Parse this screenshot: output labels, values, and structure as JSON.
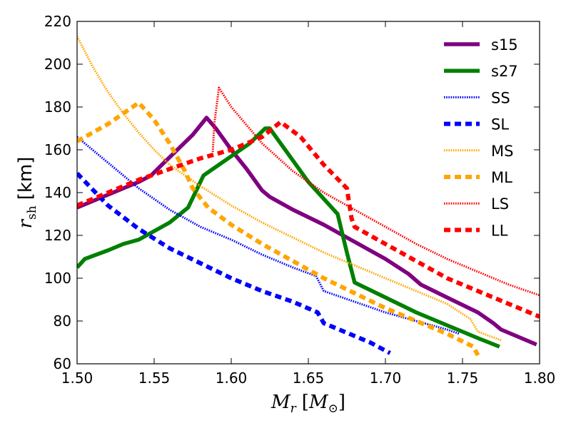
{
  "chart_data": {
    "type": "line",
    "title": "",
    "xlabel_parts": {
      "var": "M",
      "sub": "r",
      "open": "[",
      "unit": "M",
      "unit_sub": "⊙",
      "close": "]"
    },
    "ylabel_parts": {
      "var": "r",
      "sub": "sh",
      "unit": "[km]"
    },
    "xlim": [
      1.5,
      1.8
    ],
    "ylim": [
      60,
      220
    ],
    "xticks": [
      1.5,
      1.55,
      1.6,
      1.65,
      1.7,
      1.75,
      1.8
    ],
    "xtick_labels": [
      "1.50",
      "1.55",
      "1.60",
      "1.65",
      "1.70",
      "1.75",
      "1.80"
    ],
    "yticks": [
      60,
      80,
      100,
      120,
      140,
      160,
      180,
      200,
      220
    ],
    "ytick_labels": [
      "60",
      "80",
      "100",
      "120",
      "140",
      "160",
      "180",
      "200",
      "220"
    ],
    "grid": false,
    "legend_position": "top-right",
    "series": [
      {
        "name": "s15",
        "color": "#800080",
        "style": "solid",
        "x": [
          1.5,
          1.51,
          1.52,
          1.53,
          1.54,
          1.548,
          1.555,
          1.565,
          1.575,
          1.584,
          1.59,
          1.6,
          1.61,
          1.62,
          1.625,
          1.64,
          1.66,
          1.68,
          1.7,
          1.715,
          1.723,
          1.74,
          1.76,
          1.77,
          1.775,
          1.798
        ],
        "y": [
          133,
          136,
          139,
          142,
          145,
          148,
          153,
          160,
          167,
          175,
          170,
          160,
          151,
          141,
          138,
          132,
          125,
          117,
          109,
          102,
          97,
          91,
          84,
          79,
          76,
          69
        ]
      },
      {
        "name": "s27",
        "color": "#008000",
        "style": "solid",
        "x": [
          1.5,
          1.505,
          1.52,
          1.53,
          1.54,
          1.55,
          1.56,
          1.572,
          1.578,
          1.582,
          1.59,
          1.6,
          1.612,
          1.622,
          1.625,
          1.635,
          1.65,
          1.669,
          1.675,
          1.68,
          1.7,
          1.72,
          1.74,
          1.76,
          1.774
        ],
        "y": [
          105,
          109,
          113,
          116,
          118,
          122,
          126,
          133,
          142,
          148,
          152,
          157,
          163,
          170,
          170,
          160,
          145,
          130,
          112,
          98,
          91,
          84,
          78,
          72,
          68
        ]
      },
      {
        "name": "SS",
        "color": "#0000ff",
        "style": "dotted",
        "x": [
          1.5,
          1.52,
          1.54,
          1.56,
          1.58,
          1.6,
          1.62,
          1.64,
          1.655,
          1.66,
          1.68,
          1.7,
          1.72,
          1.74,
          1.748
        ],
        "y": [
          166,
          154,
          142,
          132,
          124,
          118,
          111,
          105,
          101,
          94,
          89,
          84,
          80,
          76,
          74
        ]
      },
      {
        "name": "SL",
        "color": "#0000ff",
        "style": "dashed",
        "x": [
          1.5,
          1.52,
          1.54,
          1.56,
          1.58,
          1.6,
          1.62,
          1.64,
          1.656,
          1.66,
          1.68,
          1.69,
          1.703
        ],
        "y": [
          149,
          134,
          123,
          114,
          107,
          100,
          94,
          89,
          84,
          79,
          73,
          70,
          65
        ]
      },
      {
        "name": "MS",
        "color": "#ffa500",
        "style": "dotted",
        "x": [
          1.5,
          1.51,
          1.52,
          1.53,
          1.54,
          1.55,
          1.56,
          1.58,
          1.6,
          1.62,
          1.64,
          1.66,
          1.68,
          1.7,
          1.72,
          1.74,
          1.755,
          1.76,
          1.775
        ],
        "y": [
          213,
          199,
          187,
          177,
          168,
          160,
          153,
          143,
          134,
          126,
          119,
          112,
          106,
          100,
          94,
          88,
          81,
          75,
          71
        ]
      },
      {
        "name": "ML",
        "color": "#ffa500",
        "style": "dashed",
        "x": [
          1.5,
          1.52,
          1.54,
          1.55,
          1.56,
          1.57,
          1.575,
          1.585,
          1.6,
          1.62,
          1.64,
          1.66,
          1.68,
          1.7,
          1.72,
          1.74,
          1.757,
          1.76
        ],
        "y": [
          164,
          172,
          182,
          174,
          163,
          150,
          142,
          133,
          125,
          116,
          108,
          100,
          93,
          86,
          80,
          74,
          68,
          64
        ]
      },
      {
        "name": "LS",
        "color": "#ff0000",
        "style": "dotted",
        "x": [
          1.588,
          1.589,
          1.592,
          1.6,
          1.62,
          1.64,
          1.66,
          1.68,
          1.7,
          1.72,
          1.74,
          1.76,
          1.78,
          1.8
        ],
        "y": [
          159,
          172,
          189,
          180,
          163,
          150,
          140,
          132,
          124,
          116,
          109,
          103,
          97,
          92
        ]
      },
      {
        "name": "LL",
        "color": "#ff0000",
        "style": "dashed",
        "x": [
          1.5,
          1.52,
          1.54,
          1.56,
          1.58,
          1.6,
          1.62,
          1.632,
          1.645,
          1.66,
          1.675,
          1.678,
          1.68,
          1.7,
          1.72,
          1.74,
          1.76,
          1.78,
          1.8
        ],
        "y": [
          134,
          140,
          146,
          151,
          156,
          160,
          166,
          173,
          166,
          153,
          142,
          128,
          124,
          116,
          108,
          100,
          94,
          88,
          82
        ]
      }
    ]
  }
}
